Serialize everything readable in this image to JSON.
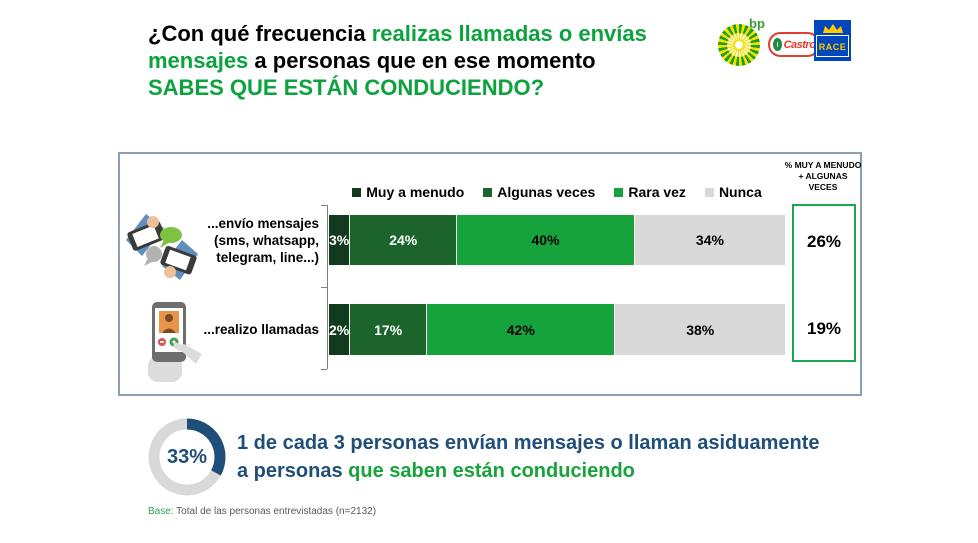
{
  "title": {
    "l1_black": "¿Con qué frecuencia ",
    "l1_green": "realizas llamadas o envías",
    "l2_green": "mensajes",
    "l2_black": " a personas que en ese momento",
    "l3_green": "SABES QUE ESTÁN CONDUCIENDO?"
  },
  "logos": {
    "bp": "bp",
    "castrol": "Castrol",
    "race": "RACE"
  },
  "chart_data": {
    "type": "bar",
    "orientation": "horizontal_stacked",
    "title": "¿Con qué frecuencia realizas llamadas o envías mensajes a personas que en ese momento sabes que están conduciendo?",
    "legend": [
      "Muy a menudo",
      "Algunas veces",
      "Rara vez",
      "Nunca"
    ],
    "legend_colors": [
      "#123A1E",
      "#1B642C",
      "#17A33C",
      "#D9D9D9"
    ],
    "label_colors": [
      "#FFFFFF",
      "#FFFFFF",
      "#000000",
      "#000000"
    ],
    "legend_position": "top",
    "xlim": [
      0,
      100
    ],
    "categories": [
      "...envío mensajes (sms, whatsapp, telegram, line...)",
      "...realizo llamadas"
    ],
    "category_lines": [
      [
        "...envío mensajes",
        "(sms, whatsapp,",
        "telegram, line...)"
      ],
      [
        "...realizo llamadas"
      ]
    ],
    "series": [
      {
        "name": "Muy a menudo",
        "values": [
          3,
          2
        ]
      },
      {
        "name": "Algunas veces",
        "values": [
          24,
          17
        ]
      },
      {
        "name": "Rara vez",
        "values": [
          40,
          42
        ]
      },
      {
        "name": "Nunca",
        "values": [
          34,
          38
        ]
      }
    ],
    "data_labels": [
      [
        "3%",
        "24%",
        "40%",
        "34%"
      ],
      [
        "2%",
        "17%",
        "42%",
        "38%"
      ]
    ],
    "summary_column": {
      "header": "% MUY A MENUDO + ALGUNAS VECES",
      "values": [
        "26%",
        "19%"
      ]
    }
  },
  "summary": {
    "donut_value": 33,
    "donut_label": "33%",
    "line1": "1 de cada 3 personas envían mensajes o llaman asiduamente",
    "line2_blue": "a personas ",
    "line2_green": "que saben están conduciendo"
  },
  "footer": {
    "base_label": "Base:",
    "base_text": " Total de las personas entrevistadas (n=2132)"
  },
  "colors": {
    "title_green": "#0CA23E",
    "dark_navy": "#1F4E79",
    "green_box_border": "#1CA64F",
    "chart_border": "#8AA0B4",
    "donut_ring_gray": "#D9D9D9"
  }
}
